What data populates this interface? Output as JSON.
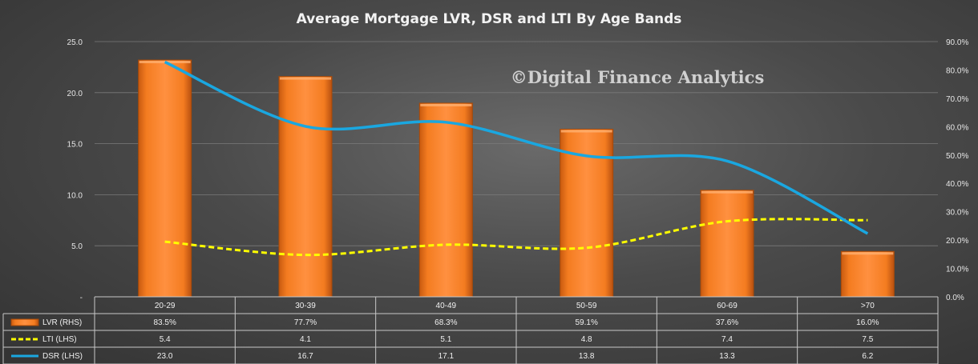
{
  "chart_data": {
    "type": "bar",
    "title": "Average Mortgage  LVR, DSR and LTI By Age Bands",
    "watermark": "©Digital Finance Analytics",
    "categories": [
      "20-29",
      "30-39",
      "40-49",
      "50-59",
      "60-69",
      ">70"
    ],
    "left_axis": {
      "min": 0,
      "max": 25,
      "ticks": [
        "-",
        "5.0",
        "10.0",
        "15.0",
        "20.0",
        "25.0"
      ],
      "tick_values": [
        0,
        5,
        10,
        15,
        20,
        25
      ]
    },
    "right_axis": {
      "min": 0,
      "max": 90,
      "ticks": [
        "0.0%",
        "10.0%",
        "20.0%",
        "30.0%",
        "40.0%",
        "50.0%",
        "60.0%",
        "70.0%",
        "80.0%",
        "90.0%"
      ],
      "tick_values": [
        0,
        10,
        20,
        30,
        40,
        50,
        60,
        70,
        80,
        90
      ]
    },
    "series": [
      {
        "name": "LVR (RHS)",
        "type": "bar",
        "axis": "right",
        "color": "#f47c20",
        "values": [
          83.5,
          77.7,
          68.3,
          59.1,
          37.6,
          16.0
        ],
        "labels": [
          "83.5%",
          "77.7%",
          "68.3%",
          "59.1%",
          "37.6%",
          "16.0%"
        ]
      },
      {
        "name": "LTI (LHS)",
        "type": "line",
        "axis": "left",
        "color": "#ffff00",
        "dashed": true,
        "values": [
          5.4,
          4.1,
          5.1,
          4.8,
          7.4,
          7.5
        ],
        "labels": [
          "5.4",
          "4.1",
          "5.1",
          "4.8",
          "7.4",
          "7.5"
        ]
      },
      {
        "name": "DSR (LHS)",
        "type": "line",
        "axis": "left",
        "color": "#1aa7e0",
        "dashed": false,
        "values": [
          23.0,
          16.7,
          17.1,
          13.8,
          13.3,
          6.2
        ],
        "labels": [
          "23.0",
          "16.7",
          "17.1",
          "13.8",
          "13.3",
          "6.2"
        ]
      }
    ],
    "legend": "data-table-below"
  }
}
